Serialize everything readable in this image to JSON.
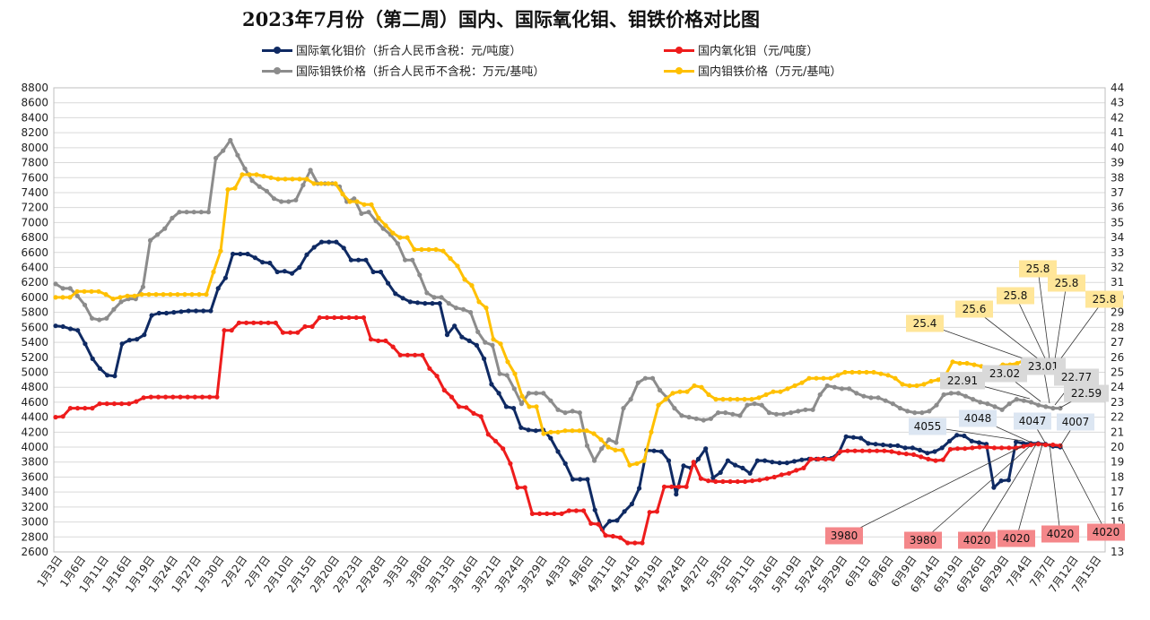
{
  "chart_data": {
    "type": "line",
    "title": "2023年7月份（第二周）国内、国际氧化钼、钼铁价格对比图",
    "x_ticks": [
      "1月3日",
      "1月6日",
      "1月11日",
      "1月16日",
      "1月19日",
      "1月24日",
      "1月27日",
      "1月30日",
      "2月2日",
      "2月7日",
      "2月10日",
      "2月15日",
      "2月20日",
      "2月23日",
      "2月28日",
      "3月3日",
      "3月8日",
      "3月13日",
      "3月16日",
      "3月21日",
      "3月24日",
      "3月29日",
      "4月3日",
      "4月6日",
      "4月11日",
      "4月14日",
      "4月19日",
      "4月24日",
      "4月27日",
      "5月5日",
      "5月11日",
      "5月16日",
      "5月19日",
      "5月24日",
      "5月29日",
      "6月1日",
      "6月6日",
      "6月9日",
      "6月14日",
      "6月19日",
      "6月26日",
      "6月29日",
      "7月4日",
      "7月7日",
      "7月12日",
      "7月15日"
    ],
    "y_left": {
      "min": 2600,
      "max": 8800,
      "step": 200
    },
    "y_right": {
      "min": 13,
      "max": 44,
      "step": 1
    },
    "grid": "horizontal",
    "legend_position": "top",
    "series": [
      {
        "name": "国际氧化钼价（折合人民币含税：元/吨度）",
        "axis": "left",
        "color": "#0f2a63",
        "values": [
          5620,
          5610,
          5580,
          5560,
          5380,
          5180,
          5050,
          4960,
          4950,
          5380,
          5430,
          5440,
          5500,
          5760,
          5790,
          5790,
          5800,
          5810,
          5820,
          5820,
          5820,
          5820,
          6120,
          6260,
          6580,
          6580,
          6580,
          6530,
          6470,
          6460,
          6340,
          6350,
          6320,
          6400,
          6570,
          6670,
          6740,
          6740,
          6740,
          6660,
          6500,
          6500,
          6500,
          6340,
          6340,
          6190,
          6050,
          5990,
          5940,
          5930,
          5920,
          5920,
          5920,
          5500,
          5620,
          5470,
          5420,
          5360,
          5180,
          4840,
          4720,
          4540,
          4520,
          4260,
          4230,
          4220,
          4230,
          4120,
          3940,
          3780,
          3570,
          3570,
          3570,
          3160,
          2900,
          3010,
          3020,
          3140,
          3240,
          3450,
          3960,
          3950,
          3940,
          3820,
          3370,
          3750,
          3720,
          3840,
          3980,
          3590,
          3660,
          3820,
          3760,
          3720,
          3650,
          3820,
          3820,
          3800,
          3790,
          3790,
          3810,
          3830,
          3840,
          3840,
          3850,
          3850,
          3920,
          4140,
          4130,
          4120,
          4050,
          4040,
          4030,
          4020,
          4020,
          3990,
          3990,
          3960,
          3920,
          3940,
          3990,
          4080,
          4160,
          4150,
          4080,
          4060,
          4040,
          3460,
          3550,
          3560,
          4070,
          4050,
          4050,
          4050,
          4040,
          4010,
          4000
        ]
      },
      {
        "name": "国内氧化钼（元/吨度）",
        "axis": "left",
        "color": "#ee1c1c",
        "values": [
          4400,
          4410,
          4520,
          4520,
          4520,
          4520,
          4580,
          4580,
          4580,
          4580,
          4580,
          4610,
          4660,
          4670,
          4670,
          4670,
          4670,
          4670,
          4670,
          4670,
          4670,
          4670,
          4670,
          5560,
          5560,
          5660,
          5660,
          5660,
          5660,
          5660,
          5660,
          5530,
          5530,
          5530,
          5610,
          5610,
          5730,
          5730,
          5730,
          5730,
          5730,
          5730,
          5730,
          5440,
          5420,
          5420,
          5340,
          5230,
          5230,
          5230,
          5230,
          5050,
          4950,
          4760,
          4670,
          4540,
          4530,
          4450,
          4410,
          4170,
          4080,
          3980,
          3780,
          3460,
          3460,
          3110,
          3110,
          3110,
          3110,
          3110,
          3150,
          3150,
          3150,
          2980,
          2970,
          2820,
          2810,
          2790,
          2720,
          2720,
          2720,
          3130,
          3140,
          3470,
          3470,
          3470,
          3470,
          3800,
          3580,
          3550,
          3540,
          3540,
          3540,
          3540,
          3540,
          3550,
          3560,
          3580,
          3600,
          3630,
          3650,
          3690,
          3720,
          3840,
          3840,
          3840,
          3840,
          3940,
          3950,
          3950,
          3950,
          3950,
          3950,
          3950,
          3940,
          3920,
          3910,
          3900,
          3870,
          3840,
          3820,
          3830,
          3970,
          3980,
          3980,
          3990,
          4000,
          4000,
          3990,
          3990,
          3990,
          3990,
          4010,
          4030,
          4040,
          4030,
          4030,
          4020
        ]
      },
      {
        "name": "国际钼铁价格（折合人民币不含税：万元/基吨）",
        "axis": "right",
        "color": "#8c8c8c",
        "values": [
          30.9,
          30.6,
          30.6,
          30.1,
          29.5,
          28.6,
          28.5,
          28.6,
          29.2,
          29.7,
          29.9,
          29.9,
          30.7,
          33.8,
          34.2,
          34.6,
          35.3,
          35.7,
          35.7,
          35.7,
          35.7,
          35.7,
          39.3,
          39.8,
          40.5,
          39.5,
          38.6,
          37.8,
          37.4,
          37.1,
          36.6,
          36.4,
          36.4,
          36.5,
          37.5,
          38.5,
          37.6,
          37.6,
          37.6,
          37.4,
          36.4,
          36.6,
          35.6,
          35.7,
          35.1,
          34.6,
          34.2,
          33.6,
          32.5,
          32.5,
          31.5,
          30.3,
          30.0,
          30.0,
          29.6,
          29.3,
          29.2,
          29.0,
          27.7,
          27.0,
          26.8,
          24.9,
          24.8,
          23.9,
          22.9,
          23.6,
          23.6,
          23.6,
          23.1,
          22.5,
          22.3,
          22.4,
          22.3,
          20.1,
          19.1,
          19.9,
          20.5,
          20.3,
          22.6,
          23.2,
          24.3,
          24.6,
          24.6,
          23.8,
          23.3,
          22.6,
          22.1,
          22.0,
          21.9,
          21.8,
          21.9,
          22.3,
          22.3,
          22.2,
          22.1,
          22.8,
          22.9,
          22.8,
          22.3,
          22.2,
          22.2,
          22.3,
          22.4,
          22.5,
          22.5,
          23.5,
          24.1,
          24.0,
          23.9,
          23.9,
          23.6,
          23.4,
          23.3,
          23.3,
          23.1,
          22.9,
          22.6,
          22.4,
          22.3,
          22.3,
          22.4,
          22.8,
          23.5,
          23.6,
          23.6,
          23.4,
          23.2,
          23.0,
          22.9,
          22.7,
          22.5,
          22.9,
          23.2,
          23.1,
          23.0,
          22.8,
          22.7,
          22.6,
          22.6
        ]
      },
      {
        "name": "国内钼铁价格（万元/基吨）",
        "axis": "right",
        "color": "#ffc000",
        "values": [
          30.0,
          30.0,
          30.0,
          30.4,
          30.4,
          30.4,
          30.4,
          30.2,
          29.9,
          30.0,
          30.1,
          30.1,
          30.2,
          30.2,
          30.2,
          30.2,
          30.2,
          30.2,
          30.2,
          30.2,
          30.2,
          30.2,
          31.7,
          33.1,
          37.2,
          37.3,
          38.2,
          38.2,
          38.2,
          38.1,
          38.0,
          37.9,
          37.9,
          37.9,
          37.9,
          37.9,
          37.6,
          37.6,
          37.6,
          37.6,
          36.9,
          36.4,
          36.4,
          36.2,
          36.2,
          35.3,
          34.8,
          34.3,
          34.0,
          34.0,
          33.2,
          33.2,
          33.2,
          33.2,
          33.1,
          32.6,
          32.1,
          31.2,
          30.8,
          29.7,
          29.3,
          27.2,
          26.9,
          25.7,
          24.9,
          23.4,
          22.7,
          22.7,
          20.9,
          21.0,
          21.0,
          21.1,
          21.1,
          21.1,
          21.1,
          20.9,
          20.5,
          20.0,
          19.8,
          19.8,
          18.8,
          18.9,
          19.1,
          21.0,
          22.8,
          23.2,
          23.6,
          23.7,
          23.7,
          24.1,
          24.0,
          23.5,
          23.2,
          23.2,
          23.2,
          23.2,
          23.2,
          23.2,
          23.3,
          23.5,
          23.7,
          23.7,
          23.9,
          24.1,
          24.3,
          24.6,
          24.6,
          24.6,
          24.6,
          24.8,
          25.0,
          25.0,
          25.0,
          25.0,
          25.0,
          24.9,
          24.8,
          24.6,
          24.2,
          24.1,
          24.1,
          24.2,
          24.4,
          24.5,
          24.8,
          25.7,
          25.6,
          25.6,
          25.5,
          25.4,
          25.3,
          25.3,
          25.5,
          25.5,
          25.6,
          25.8,
          25.8,
          25.8,
          25.8,
          25.8,
          25.8
        ]
      }
    ],
    "annotations": [
      {
        "text": "25.4",
        "series": "国内钼铁价格（万元/基吨）",
        "style": "yellow"
      },
      {
        "text": "25.6",
        "series": "国内钼铁价格（万元/基吨）",
        "style": "yellow"
      },
      {
        "text": "25.8",
        "series": "国内钼铁价格（万元/基吨）",
        "style": "yellow"
      },
      {
        "text": "25.8",
        "series": "国内钼铁价格（万元/基吨）",
        "style": "yellow"
      },
      {
        "text": "25.8",
        "series": "国内钼铁价格（万元/基吨）",
        "style": "yellow"
      },
      {
        "text": "25.8",
        "series": "国内钼铁价格（万元/基吨）",
        "style": "yellow"
      },
      {
        "text": "22.91",
        "series": "国际钼铁价格（折合人民币不含税：万元/基吨）",
        "style": "gray"
      },
      {
        "text": "23.02",
        "series": "国际钼铁价格（折合人民币不含税：万元/基吨）",
        "style": "gray"
      },
      {
        "text": "23.01",
        "series": "国际钼铁价格（折合人民币不含税：万元/基吨）",
        "style": "gray"
      },
      {
        "text": "22.77",
        "series": "国际钼铁价格（折合人民币不含税：万元/基吨）",
        "style": "gray"
      },
      {
        "text": "22.59",
        "series": "国际钼铁价格（折合人民币不含税：万元/基吨）",
        "style": "gray"
      },
      {
        "text": "4055",
        "series": "国际氧化钼价（折合人民币含税：元/吨度）",
        "style": "blue"
      },
      {
        "text": "4048",
        "series": "国际氧化钼价（折合人民币含税：元/吨度）",
        "style": "blue"
      },
      {
        "text": "4047",
        "series": "国际氧化钼价（折合人民币含税：元/吨度）",
        "style": "blue"
      },
      {
        "text": "4007",
        "series": "国际氧化钼价（折合人民币含税：元/吨度）",
        "style": "blue"
      },
      {
        "text": "3980",
        "series": "国内氧化钼（元/吨度）",
        "style": "red"
      },
      {
        "text": "3980",
        "series": "国内氧化钼（元/吨度）",
        "style": "red"
      },
      {
        "text": "4020",
        "series": "国内氧化钼（元/吨度）",
        "style": "red"
      },
      {
        "text": "4020",
        "series": "国内氧化钼（元/吨度）",
        "style": "red"
      },
      {
        "text": "4020",
        "series": "国内氧化钼（元/吨度）",
        "style": "red"
      },
      {
        "text": "4020",
        "series": "国内氧化钼（元/吨度）",
        "style": "red"
      }
    ]
  },
  "colors": {
    "yellow_label_bg": "#ffe699",
    "gray_label_bg": "#d9d9d9",
    "blue_label_bg": "#dce6f2",
    "red_label_bg": "#f4878a",
    "grid": "#d9d9d9"
  }
}
